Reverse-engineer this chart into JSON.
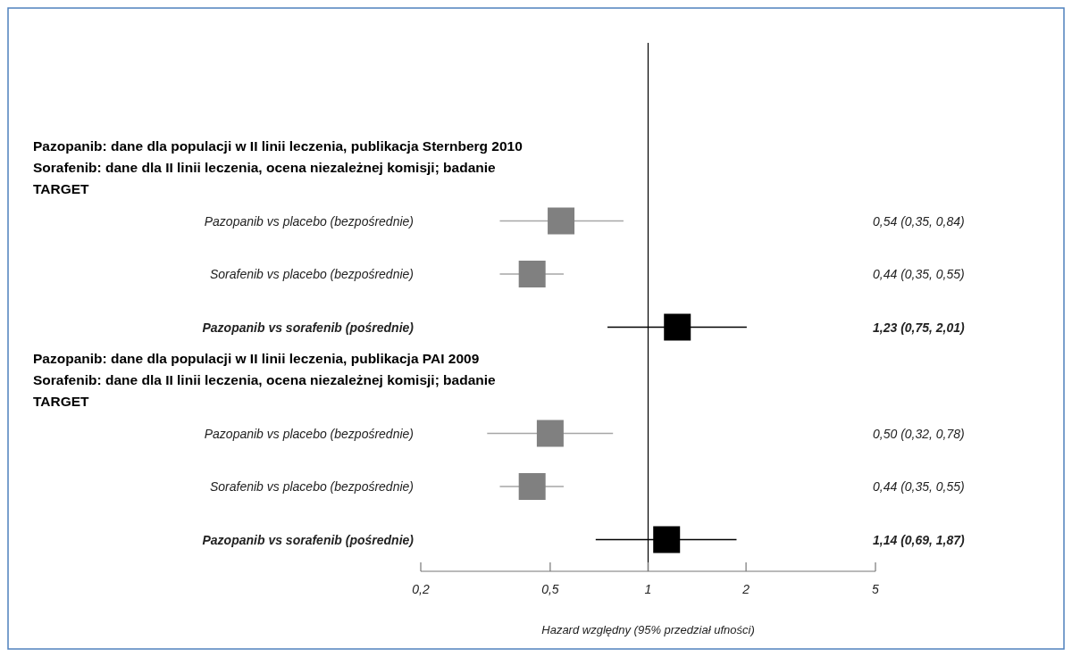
{
  "chart_data": {
    "type": "scatter",
    "orientation": "horizontal",
    "log": "x",
    "marker": "square",
    "xlabel": "Hazard względny (95% przedział ufności)",
    "annotations": [
      "Pazopanib: dane dla populacji w II linii leczenia, publikacja Sternberg 2010\nSorafenib: dane dla II linii leczenia, ocena niezależnej komisji; badanie\nTARGET",
      "Pazopanib: dane dla populacji w II linii leczenia, publikacja PAI 2009\nSorafenib: dane dla II linii leczenia, ocena niezależnej komisji; badanie\nTARGET"
    ],
    "categories": [
      null,
      "Pazopanib vs placebo (bezpośrednie)",
      "Sorafenib vs placebo (bezpośrednie)",
      "Pazopanib vs sorafenib (pośrednie)",
      null,
      "Pazopanib vs placebo (bezpośrednie)",
      "Sorafenib vs placebo (bezpośrednie)",
      "Pazopanib vs sorafenib (pośrednie)"
    ],
    "values": [
      null,
      0.54,
      0.44,
      1.23,
      null,
      0.5,
      0.44,
      1.14
    ],
    "errors": [
      null,
      [
        0.35,
        0.84
      ],
      [
        0.35,
        0.55
      ],
      [
        0.75,
        2.01
      ],
      null,
      [
        0.32,
        0.78
      ],
      [
        0.35,
        0.55
      ],
      [
        0.69,
        1.87
      ]
    ],
    "value_labels": [
      null,
      "0,54 (0,35, 0,84)",
      "0,44 (0,35, 0,55)",
      "1,23 (0,75, 2,01)",
      null,
      "0,50 (0,32, 0,78)",
      "0,44 (0,35, 0,55)",
      "1,14 (0,69, 1,87)"
    ],
    "colors": [
      null,
      "#808080",
      "#808080",
      "#000000",
      null,
      "#808080",
      "#808080",
      "#000000"
    ],
    "xlim": [
      0.2,
      5
    ],
    "xticks": [
      {
        "value": 0.2,
        "label": "0,2"
      },
      {
        "value": 0.5,
        "label": "0,5"
      },
      1,
      2,
      5
    ],
    "ref_lines": [
      {
        "axis": "x",
        "value": 1,
        "color": "#000000"
      }
    ]
  }
}
